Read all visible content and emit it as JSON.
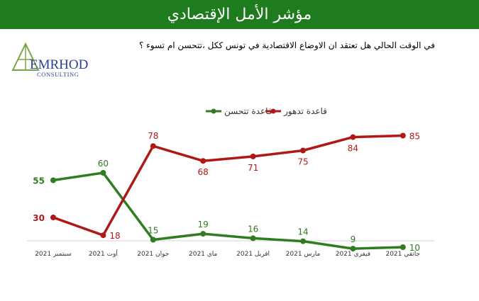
{
  "header": {
    "title": "مؤشر الأمل الإقتصادي"
  },
  "question": "في الوقت الحالي هل تعتقد ان الاوضاع الاقتصادية في تونس ككل ،تتحسن ام تسوء ؟",
  "logo": {
    "text_main": "EMRHOD",
    "text_sub": "CONSULTING"
  },
  "colors": {
    "header_bg": "#1e7b1e",
    "improve": "#2e7d1e",
    "worsen": "#b01818"
  },
  "chart_data": {
    "type": "line",
    "categories": [
      "سبتمبر 2021",
      "أوت 2021",
      "جوان 2021",
      "ماي 2021",
      "افريل 2021",
      "مارس 2021",
      "فيفري 2021",
      "جانفي 2021"
    ],
    "series": [
      {
        "name": "قاعدة تتحسن",
        "color": "#2e7d1e",
        "values": [
          55,
          60,
          15,
          19,
          16,
          14,
          9,
          10
        ]
      },
      {
        "name": "قاعدة تدهور",
        "color": "#b01818",
        "values": [
          30,
          18,
          78,
          68,
          71,
          75,
          84,
          85
        ]
      }
    ],
    "ylim": [
      0,
      100
    ],
    "legend": "top",
    "grid": false
  }
}
